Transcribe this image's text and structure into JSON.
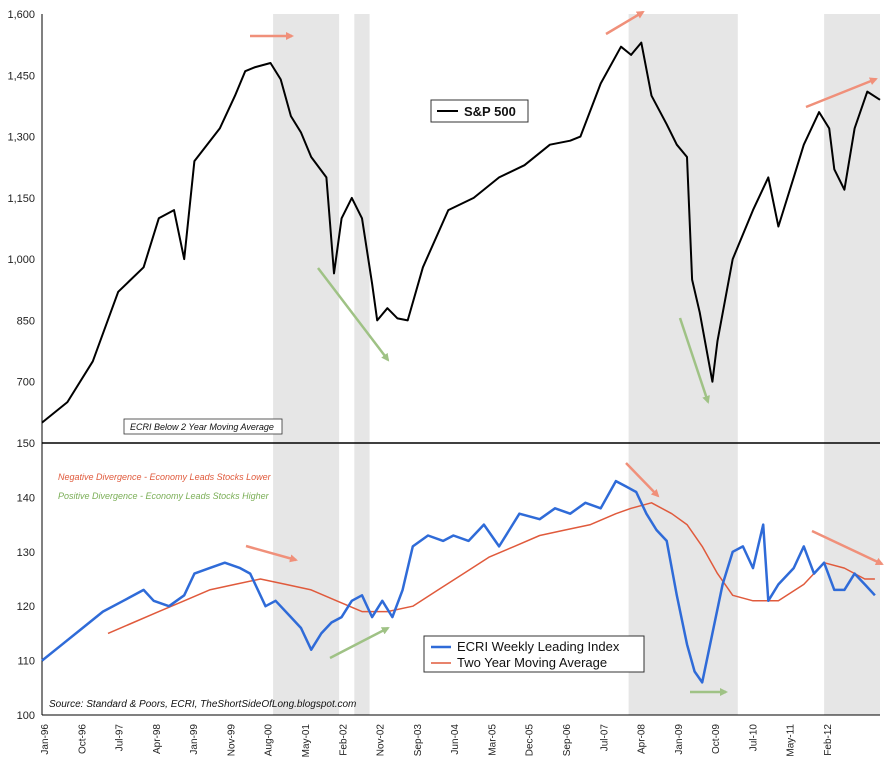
{
  "chart_data": [
    {
      "type": "line",
      "title": "",
      "ylim": [
        550,
        1600
      ],
      "y_ticks": [
        "700",
        "850",
        "1,000",
        "1,150",
        "1,300",
        "1,450",
        "1,600"
      ],
      "legend": {
        "label": "S&P 500",
        "color": "#000000",
        "placement": "top-center"
      },
      "series": [
        {
          "name": "S&P 500",
          "color": "#000000",
          "x": [
            1996.0,
            1996.5,
            1997.0,
            1997.5,
            1998.0,
            1998.3,
            1998.6,
            1998.8,
            1999.0,
            1999.5,
            1999.8,
            2000.0,
            2000.2,
            2000.5,
            2000.7,
            2000.9,
            2001.1,
            2001.3,
            2001.6,
            2001.75,
            2001.9,
            2002.1,
            2002.3,
            2002.5,
            2002.6,
            2002.8,
            2003.0,
            2003.2,
            2003.5,
            2004.0,
            2004.5,
            2005.0,
            2005.5,
            2006.0,
            2006.4,
            2006.6,
            2007.0,
            2007.4,
            2007.6,
            2007.8,
            2008.0,
            2008.3,
            2008.5,
            2008.7,
            2008.8,
            2008.95,
            2009.2,
            2009.3,
            2009.6,
            2010.0,
            2010.3,
            2010.5,
            2010.8,
            2011.0,
            2011.3,
            2011.5,
            2011.6,
            2011.8,
            2012.0,
            2012.25,
            2012.5
          ],
          "y": [
            600,
            650,
            750,
            920,
            980,
            1100,
            1120,
            1000,
            1240,
            1320,
            1400,
            1460,
            1470,
            1480,
            1440,
            1350,
            1310,
            1250,
            1200,
            965,
            1100,
            1150,
            1100,
            940,
            850,
            880,
            855,
            850,
            980,
            1120,
            1150,
            1200,
            1230,
            1280,
            1290,
            1300,
            1430,
            1520,
            1500,
            1530,
            1400,
            1330,
            1280,
            1250,
            950,
            870,
            700,
            800,
            1000,
            1120,
            1200,
            1080,
            1200,
            1280,
            1360,
            1320,
            1220,
            1170,
            1320,
            1410,
            1390
          ]
        }
      ]
    },
    {
      "type": "line",
      "ylim": [
        100,
        150
      ],
      "y_ticks": [
        "100",
        "110",
        "120",
        "130",
        "140",
        "150"
      ],
      "x_tick_labels": [
        "Jan-96",
        "Oct-96",
        "Jul-97",
        "Apr-98",
        "Jan-99",
        "Nov-99",
        "Aug-00",
        "May-01",
        "Feb-02",
        "Nov-02",
        "Sep-03",
        "Jun-04",
        "Mar-05",
        "Dec-05",
        "Sep-06",
        "Jul-07",
        "Apr-08",
        "Jan-09",
        "Oct-09",
        "Jul-10",
        "May-11",
        "Feb-12"
      ],
      "legend": {
        "placement": "bottom-center"
      },
      "series": [
        {
          "name": "ECRI Weekly Leading Index",
          "color": "#2f6bd8",
          "x": [
            1996.0,
            1996.4,
            1996.8,
            1997.2,
            1997.6,
            1998.0,
            1998.2,
            1998.5,
            1998.8,
            1999.0,
            1999.3,
            1999.6,
            1999.9,
            2000.1,
            2000.4,
            2000.6,
            2000.9,
            2001.1,
            2001.3,
            2001.5,
            2001.7,
            2001.9,
            2002.1,
            2002.3,
            2002.5,
            2002.7,
            2002.9,
            2003.1,
            2003.3,
            2003.6,
            2003.9,
            2004.1,
            2004.4,
            2004.7,
            2005.0,
            2005.4,
            2005.8,
            2006.1,
            2006.4,
            2006.7,
            2007.0,
            2007.3,
            2007.5,
            2007.7,
            2007.9,
            2008.1,
            2008.3,
            2008.5,
            2008.7,
            2008.85,
            2009.0,
            2009.2,
            2009.4,
            2009.6,
            2009.8,
            2010.0,
            2010.2,
            2010.3,
            2010.5,
            2010.8,
            2011.0,
            2011.2,
            2011.4,
            2011.6,
            2011.8,
            2012.0,
            2012.2,
            2012.4
          ],
          "y": [
            110,
            113,
            116,
            119,
            121,
            123,
            121,
            120,
            122,
            126,
            127,
            128,
            127,
            126,
            120,
            121,
            118,
            116,
            112,
            115,
            117,
            118,
            121,
            122,
            118,
            121,
            118,
            123,
            131,
            133,
            132,
            133,
            132,
            135,
            131,
            137,
            136,
            138,
            137,
            139,
            138,
            143,
            142,
            141,
            137,
            134,
            132,
            122,
            113,
            108,
            106,
            115,
            124,
            130,
            131,
            127,
            135,
            121,
            124,
            127,
            131,
            126,
            128,
            123,
            123,
            126,
            124,
            122
          ]
        },
        {
          "name": "Two Year Moving Average",
          "color": "#e05a3c",
          "x": [
            1997.3,
            1997.8,
            1998.3,
            1998.8,
            1999.3,
            1999.8,
            2000.3,
            2000.8,
            2001.3,
            2001.8,
            2002.3,
            2002.8,
            2003.3,
            2003.8,
            2004.3,
            2004.8,
            2005.3,
            2005.8,
            2006.3,
            2006.8,
            2007.3,
            2007.6,
            2008.0,
            2008.4,
            2008.7,
            2009.0,
            2009.3,
            2009.6,
            2010.0,
            2010.5,
            2011.0,
            2011.4,
            2011.8,
            2012.2,
            2012.4
          ],
          "y": [
            115,
            117,
            119,
            121,
            123,
            124,
            125,
            124,
            123,
            121,
            119,
            119,
            120,
            123,
            126,
            129,
            131,
            133,
            134,
            135,
            137,
            138,
            139,
            137,
            135,
            131,
            126,
            122,
            121,
            121,
            124,
            128,
            127,
            125,
            125
          ]
        }
      ],
      "annotations": [
        "Negative Divergence - Economy Leads Stocks Lower",
        "Positive Divergence - Economy Leads Stocks Higher"
      ],
      "recession_label": "ECRI Below 2 Year Moving Average"
    }
  ],
  "recession_periods": [
    [
      2000.55,
      2001.85
    ],
    [
      2002.15,
      2002.45
    ],
    [
      2007.55,
      2009.7
    ],
    [
      2011.4,
      2012.5
    ]
  ],
  "source_text": "Source: Standard & Poors, ECRI, TheShortSideOfLong.blogspot.com",
  "colors": {
    "shade": "#e6e6e6",
    "neg_arrow": "#f0907a",
    "pos_arrow": "#9fc285",
    "neg_text": "#e05a3c",
    "pos_text": "#7aae56"
  }
}
